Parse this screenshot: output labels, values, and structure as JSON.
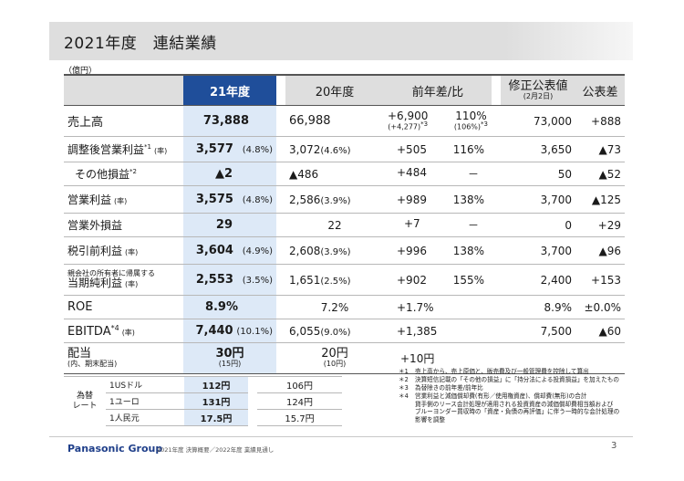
{
  "header": {
    "title": "2021年度　連結業績",
    "unit": "（億円）"
  },
  "columns": {
    "fy21": "21年度",
    "fy20": "20年度",
    "yoy": "前年差/比",
    "forecast": "修正公表値",
    "forecast_date": "(2月2日)",
    "vs_forecast": "公表差"
  },
  "rows": [
    {
      "label": "売上高",
      "fy21": "73,888",
      "fy21_pct": "",
      "fy20": "66,988",
      "fy20_pct": "",
      "diff": "+6,900",
      "diff_sub": "(+4,277)",
      "diff_sub_note": "*3",
      "ratio": "110%",
      "ratio_sub": "(106%)",
      "ratio_sub_note": "*3",
      "forecast": "73,000",
      "vs": "+888"
    },
    {
      "label": "調整後営業利益",
      "label_note": "*1",
      "label_tag": "(率)",
      "fy21": "3,577",
      "fy21_pct": "(4.8%)",
      "fy20": "3,072",
      "fy20_pct": "(4.6%)",
      "diff": "+505",
      "ratio": "116%",
      "forecast": "3,650",
      "vs": "▲73"
    },
    {
      "label": "その他損益",
      "label_note": "*2",
      "fy21": "▲2",
      "fy21_pct": "",
      "fy20": "▲486",
      "fy20_pct": "",
      "diff": "+484",
      "ratio": "－",
      "forecast": "50",
      "vs": "▲52"
    },
    {
      "label": "営業利益",
      "label_tag": "(率)",
      "fy21": "3,575",
      "fy21_pct": "(4.8%)",
      "fy20": "2,586",
      "fy20_pct": "(3.9%)",
      "diff": "+989",
      "ratio": "138%",
      "forecast": "3,700",
      "vs": "▲125"
    },
    {
      "label": "営業外損益",
      "fy21": "29",
      "fy21_pct": "",
      "fy20": "22",
      "fy20_pct": "",
      "diff": "+7",
      "ratio": "－",
      "forecast": "0",
      "vs": "+29"
    },
    {
      "label": "税引前利益",
      "label_tag": "(率)",
      "fy21": "3,604",
      "fy21_pct": "(4.9%)",
      "fy20": "2,608",
      "fy20_pct": "(3.9%)",
      "diff": "+996",
      "ratio": "138%",
      "forecast": "3,700",
      "vs": "▲96"
    },
    {
      "label_small": "親会社の所有者に帰属する",
      "label": "当期純利益",
      "label_tag": "(率)",
      "fy21": "2,553",
      "fy21_pct": "(3.5%)",
      "fy20": "1,651",
      "fy20_pct": "(2.5%)",
      "diff": "+902",
      "ratio": "155%",
      "forecast": "2,400",
      "vs": "+153"
    },
    {
      "label": "ROE",
      "fy21": "8.9%",
      "fy21_pct": "",
      "fy20": "7.2%",
      "fy20_pct": "",
      "diff": "+1.7%",
      "ratio": "",
      "forecast": "8.9%",
      "vs": "±0.0%"
    },
    {
      "label": "EBITDA",
      "label_note": "*4",
      "label_tag": "(率)",
      "fy21": "7,440",
      "fy21_pct": "(10.1%)",
      "fy20": "6,055",
      "fy20_pct": "(9.0%)",
      "diff": "+1,385",
      "ratio": "",
      "forecast": "7,500",
      "vs": "▲60"
    },
    {
      "label": "配当",
      "label_sub": "(内、期末配当)",
      "fy21": "30円",
      "fy21_sub": "(15円)",
      "fy20": "20円",
      "fy20_sub": "(10円)",
      "diff": "+10円",
      "ratio": "",
      "forecast": "",
      "vs": ""
    }
  ],
  "fx": {
    "head1": "為替",
    "head2": "レート",
    "rows": [
      {
        "currency": "1USドル",
        "fy21": "112円",
        "fy20": "106円"
      },
      {
        "currency": "1ユーロ",
        "fy21": "131円",
        "fy20": "124円"
      },
      {
        "currency": "1人民元",
        "fy21": "17.5円",
        "fy20": "15.7円"
      }
    ]
  },
  "notes": [
    {
      "mark": "＊1",
      "text": "売上高から、売上原価と、販売費及び一般管理費を控除して算出"
    },
    {
      "mark": "＊2",
      "text": "決算短信記載の「その他の損益」に「持分法による投資損益」を加えたもの"
    },
    {
      "mark": "＊3",
      "text": "為替除きの前年差/前年比"
    },
    {
      "mark": "＊4",
      "text": "営業利益と減価償却費(有形／使用権資産)、償却費(無形)の合計"
    },
    {
      "mark": "",
      "text": "貸手側のリース会計処理が適用される投資資産の減価償却費相当額および"
    },
    {
      "mark": "",
      "text": "ブルーヨンダー買収時の「資産・負債の再評価」に伴う一時的な会計処理の"
    },
    {
      "mark": "",
      "text": "影響を調整"
    }
  ],
  "footer": {
    "brand": "Panasonic Group",
    "text": "2021年度 決算概要／2022年度 業績見通し",
    "page": "3"
  }
}
